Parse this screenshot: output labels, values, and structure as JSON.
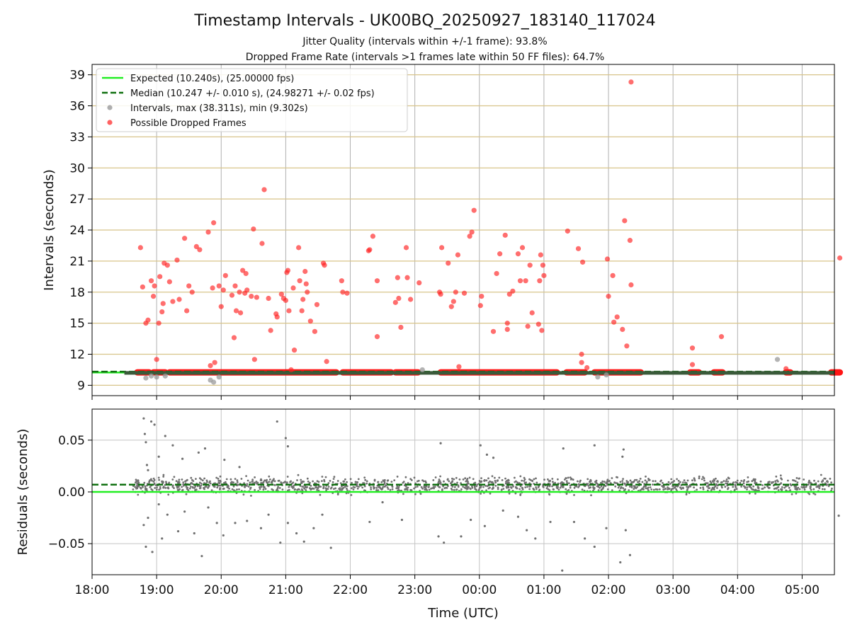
{
  "chart_data": [
    {
      "type": "scatter",
      "title": "Timestamp Intervals - UK00BQ_20250927_183140_117024",
      "subtitle_1": "Jitter Quality (intervals within +/-1 frame): 93.8%",
      "subtitle_2": "Dropped Frame Rate (intervals >1 frames late within 50 FF files): 64.7%",
      "xlabel": "",
      "ylabel": "Intervals (seconds)",
      "xlim": [
        "18:00",
        "05:30"
      ],
      "ylim": [
        8,
        40
      ],
      "yticks": [
        9,
        12,
        15,
        18,
        21,
        24,
        27,
        30,
        33,
        36,
        39
      ],
      "grid": true,
      "legend_position": "top-left",
      "legend": [
        "Expected (10.240s), (25.00000 fps)",
        "Median (10.247 +/- 0.010 s), (24.98271 +/- 0.02 fps)",
        "Intervals, max (38.311s), min (9.302s)",
        "Possible Dropped Frames"
      ],
      "series": [
        {
          "name": "Expected (10.240s), (25.00000 fps)",
          "kind": "hline",
          "y": 10.24,
          "color": "#22ee22"
        },
        {
          "name": "Median (10.247 +/- 0.010 s), (24.98271 +/- 0.02 fps)",
          "kind": "hline",
          "y": 10.247,
          "color": "#107010"
        },
        {
          "name": "Intervals, max (38.311s), min (9.302s)",
          "kind": "scatter",
          "color": "#a0a0a0",
          "points": [
            [
              "18:50",
              9.7
            ],
            [
              "18:55",
              9.9
            ],
            [
              "19:00",
              9.8
            ],
            [
              "19:08",
              9.9
            ],
            [
              "19:50",
              9.5
            ],
            [
              "19:53",
              9.3
            ],
            [
              "19:58",
              9.8
            ],
            [
              "23:07",
              10.5
            ],
            [
              "01:50",
              9.8
            ],
            [
              "01:58",
              10.0
            ],
            [
              "04:37",
              11.5
            ]
          ]
        },
        {
          "name": "Possible Dropped Frames",
          "kind": "scatter",
          "color": "#ff2020",
          "points": [
            [
              "18:45",
              22.3
            ],
            [
              "18:47",
              18.5
            ],
            [
              "18:50",
              15.0
            ],
            [
              "18:52",
              15.3
            ],
            [
              "18:55",
              19.1
            ],
            [
              "18:57",
              17.6
            ],
            [
              "18:58",
              18.6
            ],
            [
              "19:00",
              11.5
            ],
            [
              "19:02",
              15.0
            ],
            [
              "19:03",
              19.5
            ],
            [
              "19:05",
              16.1
            ],
            [
              "19:06",
              16.9
            ],
            [
              "19:07",
              20.8
            ],
            [
              "19:10",
              20.6
            ],
            [
              "19:12",
              19.0
            ],
            [
              "19:15",
              17.1
            ],
            [
              "19:19",
              21.1
            ],
            [
              "19:21",
              17.3
            ],
            [
              "19:26",
              23.2
            ],
            [
              "19:28",
              16.2
            ],
            [
              "19:30",
              18.6
            ],
            [
              "19:33",
              18.0
            ],
            [
              "19:37",
              22.4
            ],
            [
              "19:40",
              22.1
            ],
            [
              "19:48",
              23.8
            ],
            [
              "19:50",
              10.9
            ],
            [
              "19:52",
              18.4
            ],
            [
              "19:53",
              24.7
            ],
            [
              "19:54",
              11.2
            ],
            [
              "19:58",
              18.6
            ],
            [
              "20:00",
              16.6
            ],
            [
              "20:02",
              18.2
            ],
            [
              "20:04",
              19.6
            ],
            [
              "20:10",
              17.7
            ],
            [
              "20:12",
              13.6
            ],
            [
              "20:13",
              18.6
            ],
            [
              "20:14",
              16.2
            ],
            [
              "20:17",
              18.0
            ],
            [
              "20:18",
              16.0
            ],
            [
              "20:20",
              20.1
            ],
            [
              "20:22",
              17.9
            ],
            [
              "20:23",
              19.8
            ],
            [
              "20:24",
              18.2
            ],
            [
              "20:28",
              17.6
            ],
            [
              "20:30",
              24.1
            ],
            [
              "20:31",
              11.5
            ],
            [
              "20:33",
              17.5
            ],
            [
              "20:38",
              22.7
            ],
            [
              "20:40",
              27.9
            ],
            [
              "20:44",
              17.4
            ],
            [
              "20:46",
              14.3
            ],
            [
              "20:51",
              15.9
            ],
            [
              "20:52",
              15.6
            ],
            [
              "20:56",
              17.8
            ],
            [
              "20:58",
              17.4
            ],
            [
              "21:00",
              17.2
            ],
            [
              "21:01",
              19.9
            ],
            [
              "21:02",
              20.1
            ],
            [
              "21:03",
              16.2
            ],
            [
              "21:05",
              10.5
            ],
            [
              "21:07",
              18.4
            ],
            [
              "21:08",
              12.4
            ],
            [
              "21:12",
              22.3
            ],
            [
              "21:13",
              19.1
            ],
            [
              "21:15",
              16.2
            ],
            [
              "21:16",
              17.3
            ],
            [
              "21:18",
              20.0
            ],
            [
              "21:19",
              18.8
            ],
            [
              "21:20",
              18.0
            ],
            [
              "21:23",
              15.2
            ],
            [
              "21:27",
              14.2
            ],
            [
              "21:29",
              16.8
            ],
            [
              "21:35",
              20.8
            ],
            [
              "21:36",
              20.6
            ],
            [
              "21:38",
              11.3
            ],
            [
              "21:52",
              19.1
            ],
            [
              "21:53",
              18.0
            ],
            [
              "21:57",
              17.9
            ],
            [
              "22:17",
              22.0
            ],
            [
              "22:18",
              22.1
            ],
            [
              "22:21",
              23.4
            ],
            [
              "22:25",
              19.1
            ],
            [
              "22:25",
              13.7
            ],
            [
              "22:42",
              17.0
            ],
            [
              "22:44",
              19.4
            ],
            [
              "22:45",
              17.4
            ],
            [
              "22:47",
              14.6
            ],
            [
              "22:52",
              22.3
            ],
            [
              "22:53",
              19.4
            ],
            [
              "22:56",
              17.3
            ],
            [
              "23:04",
              18.9
            ],
            [
              "23:23",
              18.0
            ],
            [
              "23:24",
              17.8
            ],
            [
              "23:25",
              22.3
            ],
            [
              "23:31",
              20.8
            ],
            [
              "23:34",
              16.6
            ],
            [
              "23:36",
              17.1
            ],
            [
              "23:38",
              18.0
            ],
            [
              "23:40",
              21.6
            ],
            [
              "23:41",
              10.8
            ],
            [
              "23:46",
              17.9
            ],
            [
              "23:51",
              23.4
            ],
            [
              "23:53",
              23.8
            ],
            [
              "23:55",
              25.9
            ],
            [
              "00:01",
              16.7
            ],
            [
              "00:02",
              17.6
            ],
            [
              "00:13",
              14.2
            ],
            [
              "00:16",
              19.8
            ],
            [
              "00:19",
              21.7
            ],
            [
              "00:24",
              23.5
            ],
            [
              "00:26",
              14.4
            ],
            [
              "00:26",
              15.0
            ],
            [
              "00:28",
              17.8
            ],
            [
              "00:31",
              18.1
            ],
            [
              "00:36",
              21.7
            ],
            [
              "00:38",
              19.1
            ],
            [
              "00:40",
              22.3
            ],
            [
              "00:43",
              19.1
            ],
            [
              "00:45",
              14.7
            ],
            [
              "00:47",
              20.6
            ],
            [
              "00:49",
              16.0
            ],
            [
              "00:55",
              14.9
            ],
            [
              "00:56",
              19.1
            ],
            [
              "00:57",
              21.6
            ],
            [
              "00:58",
              14.3
            ],
            [
              "00:59",
              20.6
            ],
            [
              "01:00",
              19.6
            ],
            [
              "01:22",
              23.9
            ],
            [
              "01:32",
              22.2
            ],
            [
              "01:35",
              12.0
            ],
            [
              "01:35",
              11.2
            ],
            [
              "01:36",
              20.9
            ],
            [
              "01:40",
              10.7
            ],
            [
              "01:59",
              21.2
            ],
            [
              "02:00",
              17.6
            ],
            [
              "02:04",
              19.6
            ],
            [
              "02:05",
              15.1
            ],
            [
              "02:08",
              15.6
            ],
            [
              "02:13",
              14.4
            ],
            [
              "02:15",
              24.9
            ],
            [
              "02:17",
              12.8
            ],
            [
              "02:20",
              23.0
            ],
            [
              "02:21",
              38.3
            ],
            [
              "02:21",
              18.7
            ],
            [
              "03:18",
              12.6
            ],
            [
              "03:18",
              11.0
            ],
            [
              "03:45",
              13.7
            ],
            [
              "04:45",
              10.6
            ],
            [
              "05:35",
              21.3
            ]
          ]
        }
      ]
    },
    {
      "type": "scatter",
      "title": "",
      "xlabel": "Time (UTC)",
      "ylabel": "Residuals (seconds)",
      "xticks": [
        "18:00",
        "19:00",
        "20:00",
        "21:00",
        "22:00",
        "23:00",
        "00:00",
        "01:00",
        "02:00",
        "03:00",
        "04:00",
        "05:00"
      ],
      "yticks": [
        "−0.05",
        "0.00",
        "0.05"
      ],
      "ylim": [
        -0.08,
        0.08
      ],
      "grid": true,
      "series": [
        {
          "kind": "hline",
          "y": 0.0,
          "color": "#22ee22"
        },
        {
          "kind": "hline",
          "y": 0.007,
          "color": "#107010"
        },
        {
          "kind": "scatter",
          "color": "#707070",
          "points": [
            [
              "18:48",
              0.071
            ],
            [
              "18:49",
              0.056
            ],
            [
              "18:50",
              0.048
            ],
            [
              "18:51",
              0.026
            ],
            [
              "18:52",
              0.021
            ],
            [
              "18:55",
              0.068
            ],
            [
              "18:58",
              0.065
            ],
            [
              "19:02",
              0.034
            ],
            [
              "19:08",
              0.054
            ],
            [
              "19:15",
              0.045
            ],
            [
              "19:24",
              0.032
            ],
            [
              "19:39",
              0.038
            ],
            [
              "19:45",
              0.042
            ],
            [
              "20:03",
              0.031
            ],
            [
              "20:17",
              0.024
            ],
            [
              "20:52",
              0.068
            ],
            [
              "21:00",
              0.052
            ],
            [
              "21:02",
              0.044
            ],
            [
              "23:24",
              0.047
            ],
            [
              "00:01",
              0.045
            ],
            [
              "00:07",
              0.036
            ],
            [
              "00:13",
              0.033
            ],
            [
              "01:18",
              0.042
            ],
            [
              "01:47",
              0.045
            ],
            [
              "02:13",
              0.034
            ],
            [
              "02:14",
              0.041
            ],
            [
              "18:48",
              -0.032
            ],
            [
              "18:50",
              -0.053
            ],
            [
              "18:52",
              -0.025
            ],
            [
              "18:56",
              -0.058
            ],
            [
              "19:02",
              -0.012
            ],
            [
              "19:05",
              -0.045
            ],
            [
              "19:10",
              -0.022
            ],
            [
              "19:20",
              -0.038
            ],
            [
              "19:26",
              -0.019
            ],
            [
              "19:35",
              -0.04
            ],
            [
              "19:42",
              -0.062
            ],
            [
              "19:48",
              -0.015
            ],
            [
              "19:56",
              -0.03
            ],
            [
              "20:02",
              -0.042
            ],
            [
              "20:13",
              -0.03
            ],
            [
              "20:24",
              -0.028
            ],
            [
              "20:37",
              -0.035
            ],
            [
              "20:44",
              -0.022
            ],
            [
              "20:55",
              -0.049
            ],
            [
              "21:02",
              -0.03
            ],
            [
              "21:10",
              -0.04
            ],
            [
              "21:17",
              -0.048
            ],
            [
              "21:26",
              -0.035
            ],
            [
              "21:34",
              -0.022
            ],
            [
              "21:42",
              -0.054
            ],
            [
              "22:18",
              -0.029
            ],
            [
              "22:30",
              -0.01
            ],
            [
              "22:48",
              -0.027
            ],
            [
              "23:22",
              -0.043
            ],
            [
              "23:27",
              -0.049
            ],
            [
              "23:43",
              -0.043
            ],
            [
              "23:52",
              -0.027
            ],
            [
              "00:05",
              -0.033
            ],
            [
              "00:22",
              -0.018
            ],
            [
              "00:36",
              -0.024
            ],
            [
              "00:44",
              -0.037
            ],
            [
              "00:52",
              -0.045
            ],
            [
              "01:06",
              -0.029
            ],
            [
              "01:17",
              -0.076
            ],
            [
              "01:28",
              -0.029
            ],
            [
              "01:38",
              -0.045
            ],
            [
              "01:47",
              -0.053
            ],
            [
              "01:58",
              -0.035
            ],
            [
              "02:11",
              -0.068
            ],
            [
              "02:16",
              -0.037
            ],
            [
              "02:20",
              -0.061
            ],
            [
              "05:34",
              -0.023
            ]
          ]
        }
      ]
    }
  ]
}
